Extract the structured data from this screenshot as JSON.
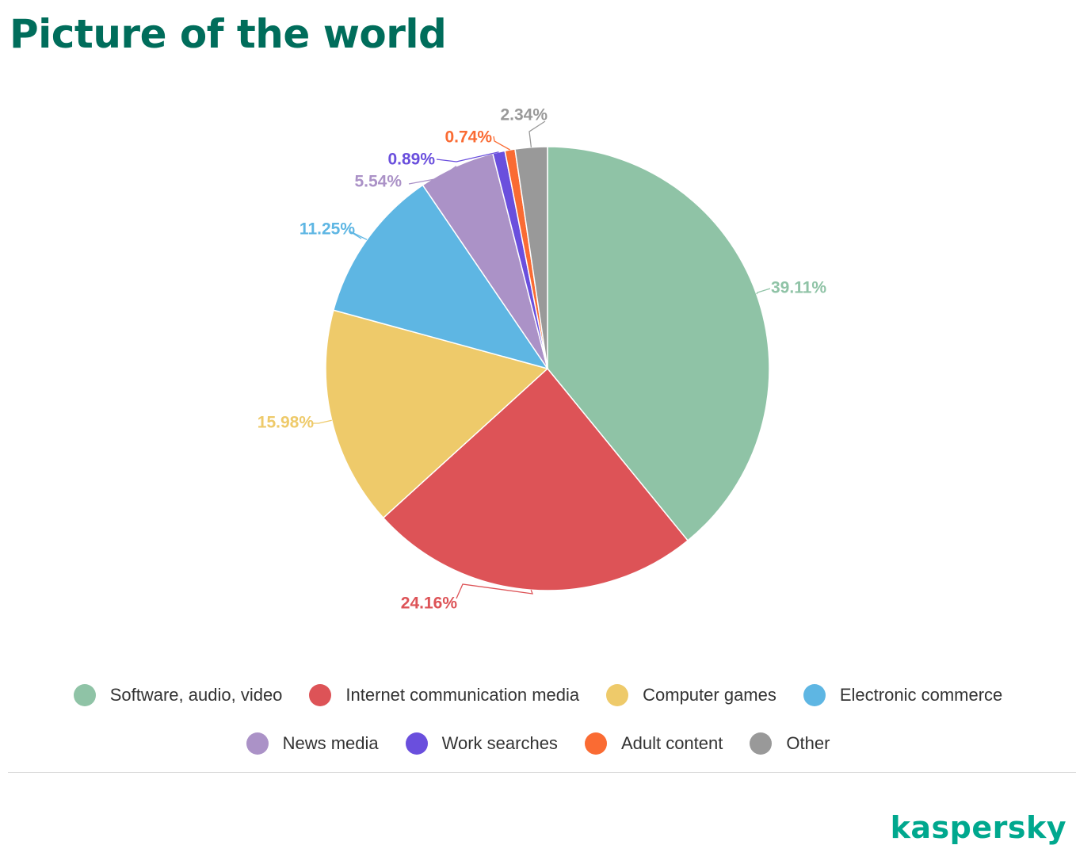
{
  "page": {
    "title": "Picture of the world",
    "logo": "kaspersky"
  },
  "chart_data": {
    "type": "pie",
    "unit": "%",
    "categories": [
      "Software, audio, video",
      "Internet communication media",
      "Computer games",
      "Electronic commerce",
      "News media",
      "Work searches",
      "Adult content",
      "Other"
    ],
    "values": [
      39.11,
      24.16,
      15.98,
      11.25,
      5.54,
      0.89,
      0.74,
      2.34
    ],
    "value_labels": [
      "39.11%",
      "24.16%",
      "15.98%",
      "11.25%",
      "5.54%",
      "0.89%",
      "0.74%",
      "2.34%"
    ],
    "colors": [
      "#8fc3a6",
      "#dd5357",
      "#eeca6a",
      "#5eb6e3",
      "#ab92c7",
      "#6a4fdd",
      "#fa6b33",
      "#999999"
    ],
    "start_angle": "12 o'clock",
    "direction": "clockwise",
    "legend_position": "bottom"
  }
}
